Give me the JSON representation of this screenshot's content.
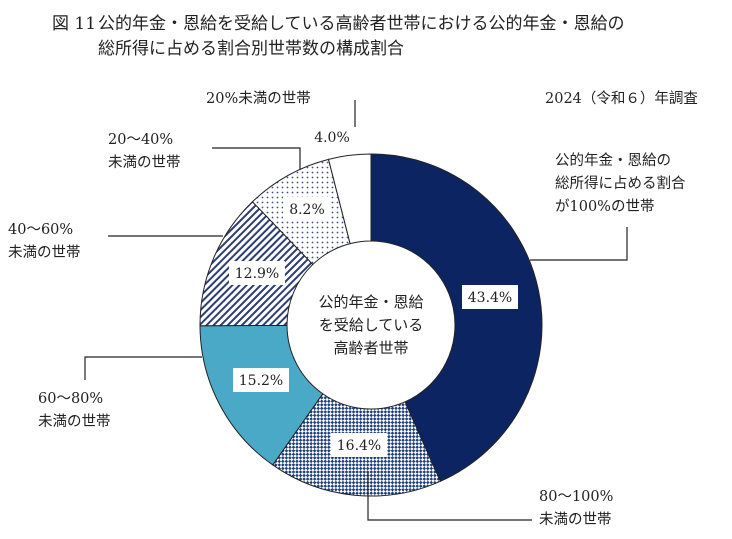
{
  "chart_data": {
    "type": "pie",
    "style": "donut",
    "title_prefix": "図 11",
    "title_lines": [
      "公的年金・恩給を受給している高齢者世帯における公的年金・恩給の",
      "総所得に占める割合別世帯数の構成割合"
    ],
    "survey_note": "2024（令和６）年調査",
    "center_lines": [
      "公的年金・恩給",
      "を受給している",
      "高齢者世帯"
    ],
    "unit": "%",
    "segments": [
      {
        "label_lines": [
          "公的年金・恩給の",
          "総所得に占める割合",
          "が100%の世帯"
        ],
        "value": 43.4,
        "value_label": "43.4%",
        "color": "#0c2461",
        "pattern": "solid"
      },
      {
        "label_lines": [
          "80〜100%",
          "未満の世帯"
        ],
        "value": 16.4,
        "value_label": "16.4%",
        "color": "#1e3f7a",
        "pattern": "checker"
      },
      {
        "label_lines": [
          "60〜80%",
          "未満の世帯"
        ],
        "value": 15.2,
        "value_label": "15.2%",
        "color": "#4ba9c8",
        "pattern": "solid"
      },
      {
        "label_lines": [
          "40〜60%",
          "未満の世帯"
        ],
        "value": 12.9,
        "value_label": "12.9%",
        "color": "#2b3e75",
        "pattern": "diagonal"
      },
      {
        "label_lines": [
          "20〜40%",
          "未満の世帯"
        ],
        "value": 8.2,
        "value_label": "8.2%",
        "color": "#3a4c86",
        "pattern": "dots"
      },
      {
        "label_lines": [
          "20%未満の世帯"
        ],
        "value": 4.0,
        "value_label": "4.0%",
        "color": "#ffffff",
        "pattern": "solid"
      }
    ]
  }
}
